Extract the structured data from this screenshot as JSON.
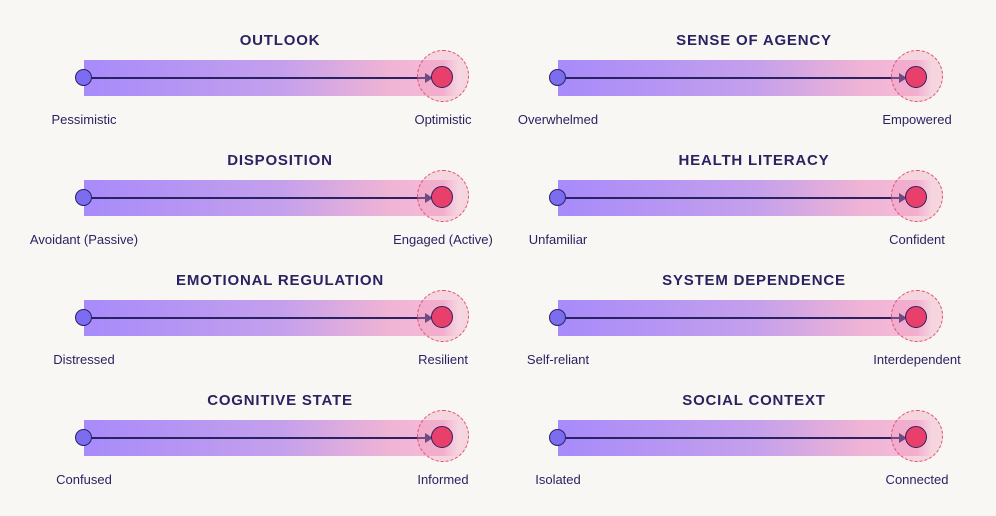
{
  "spectra": [
    {
      "title": "OUTLOOK",
      "left_label": "Pessimistic",
      "right_label": "Optimistic"
    },
    {
      "title": "SENSE OF AGENCY",
      "left_label": "Overwhelmed",
      "right_label": "Empowered"
    },
    {
      "title": "DISPOSITION",
      "left_label": "Avoidant (Passive)",
      "right_label": "Engaged (Active)"
    },
    {
      "title": "HEALTH LITERACY",
      "left_label": "Unfamiliar",
      "right_label": "Confident"
    },
    {
      "title": "EMOTIONAL REGULATION",
      "left_label": "Distressed",
      "right_label": "Resilient"
    },
    {
      "title": "SYSTEM DEPENDENCE",
      "left_label": "Self-reliant",
      "right_label": "Interdependent"
    },
    {
      "title": "COGNITIVE STATE",
      "left_label": "Confused",
      "right_label": "Informed"
    },
    {
      "title": "SOCIAL CONTEXT",
      "left_label": "Isolated",
      "right_label": "Connected"
    }
  ],
  "colors": {
    "background": "#f8f7f4",
    "text": "#2b2262",
    "bar_start": "#a78bfa",
    "bar_end": "#f4bcd8",
    "start_dot": "#7c6cf0",
    "end_dot": "#e8406a",
    "halo_dash": "#e0506f"
  }
}
